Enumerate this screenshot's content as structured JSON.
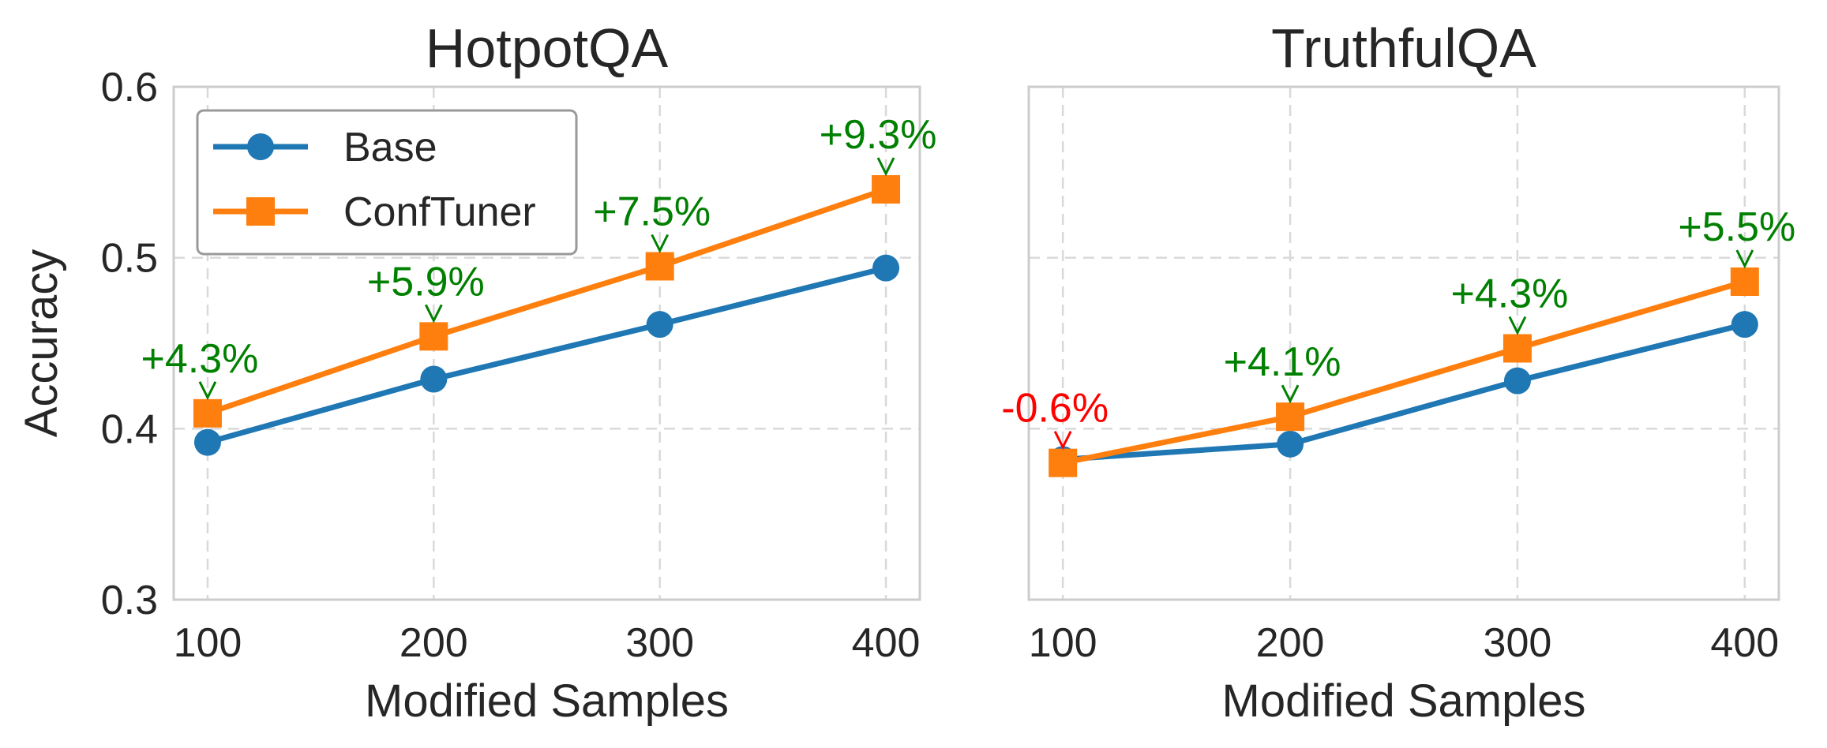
{
  "chart_data": [
    {
      "type": "line",
      "title": "HotpotQA",
      "xlabel": "Modified Samples",
      "ylabel": "Accuracy",
      "x": [
        100,
        200,
        300,
        400
      ],
      "ylim": [
        0.3,
        0.6
      ],
      "yticks": [
        0.3,
        0.4,
        0.5,
        0.6
      ],
      "ytick_labels": [
        "0.3",
        "0.4",
        "0.5",
        "0.6"
      ],
      "xtick_labels": [
        "100",
        "200",
        "300",
        "400"
      ],
      "grid": true,
      "legend_position": "top-left",
      "series": [
        {
          "name": "Base",
          "values": [
            0.392,
            0.429,
            0.461,
            0.494
          ],
          "color": "#1f77b4",
          "marker": "circle"
        },
        {
          "name": "ConfTuner",
          "values": [
            0.409,
            0.454,
            0.495,
            0.54
          ],
          "color": "#ff7f0e",
          "marker": "square"
        }
      ],
      "annotations": [
        {
          "text": "+4.3%",
          "x": 100,
          "y": 0.409,
          "color": "#008000"
        },
        {
          "text": "+5.9%",
          "x": 200,
          "y": 0.454,
          "color": "#008000"
        },
        {
          "text": "+7.5%",
          "x": 300,
          "y": 0.495,
          "color": "#008000"
        },
        {
          "text": "+9.3%",
          "x": 400,
          "y": 0.54,
          "color": "#008000"
        }
      ]
    },
    {
      "type": "line",
      "title": "TruthfulQA",
      "xlabel": "Modified Samples",
      "ylabel": "",
      "x": [
        100,
        200,
        300,
        400
      ],
      "ylim": [
        0.3,
        0.6
      ],
      "yticks": [
        0.3,
        0.4,
        0.5,
        0.6
      ],
      "ytick_labels": [],
      "xtick_labels": [
        "100",
        "200",
        "300",
        "400"
      ],
      "grid": true,
      "legend_position": "none",
      "series": [
        {
          "name": "Base",
          "values": [
            0.382,
            0.391,
            0.428,
            0.461
          ],
          "color": "#1f77b4",
          "marker": "circle"
        },
        {
          "name": "ConfTuner",
          "values": [
            0.38,
            0.407,
            0.447,
            0.486
          ],
          "color": "#ff7f0e",
          "marker": "square"
        }
      ],
      "annotations": [
        {
          "text": "-0.6%",
          "x": 100,
          "y": 0.38,
          "color": "#ff0000"
        },
        {
          "text": "+4.1%",
          "x": 200,
          "y": 0.407,
          "color": "#008000"
        },
        {
          "text": "+4.3%",
          "x": 300,
          "y": 0.447,
          "color": "#008000"
        },
        {
          "text": "+5.5%",
          "x": 400,
          "y": 0.486,
          "color": "#008000"
        }
      ]
    }
  ]
}
